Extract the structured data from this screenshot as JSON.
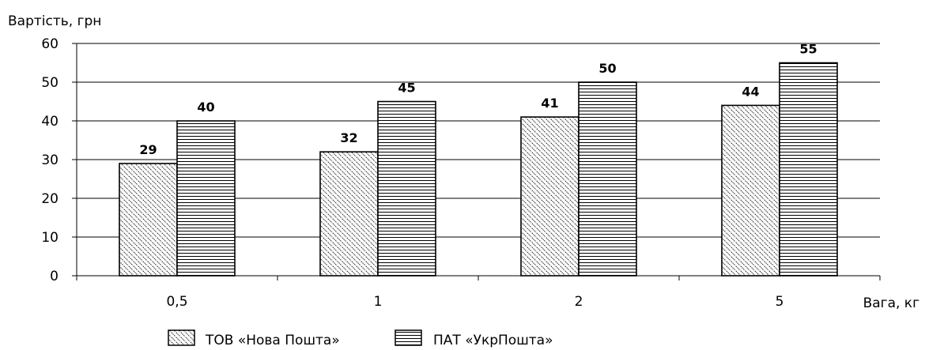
{
  "chart_data": {
    "type": "bar",
    "categories": [
      "0,5",
      "1",
      "2",
      "5"
    ],
    "series": [
      {
        "name": "ТОВ «Нова Пошта»",
        "values": [
          29,
          32,
          41,
          44
        ],
        "pattern": "diagonal-hatch"
      },
      {
        "name": "ПАТ «УкрПошта»",
        "values": [
          40,
          45,
          50,
          55
        ],
        "pattern": "horizontal-hatch"
      }
    ],
    "ylabel": "Вартість, грн",
    "xlabel": "Вага, кг",
    "ylim": [
      0,
      60
    ],
    "yticks": [
      0,
      10,
      20,
      30,
      40,
      50,
      60
    ],
    "grid": true,
    "legend_position": "bottom",
    "data_labels": true
  }
}
